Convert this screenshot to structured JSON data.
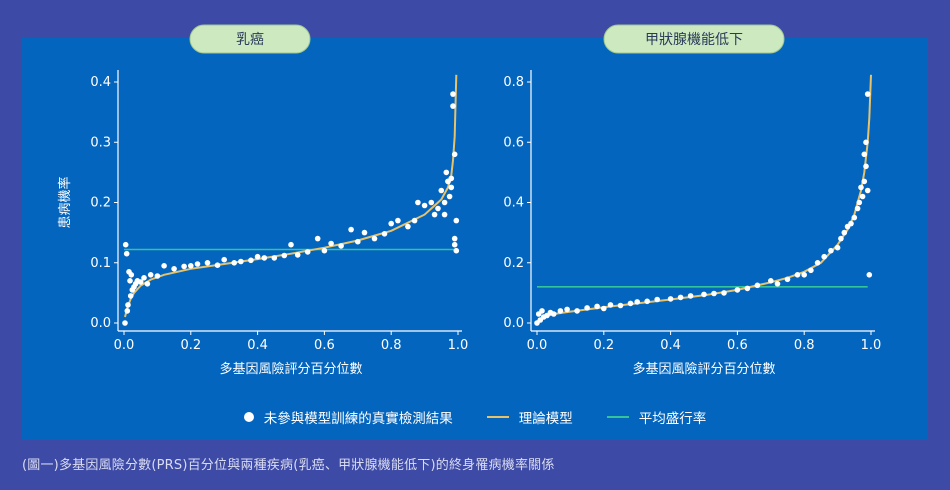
{
  "caption": "(圖一)多基因風險分數(PRS)百分位與兩種疾病(乳癌、甲狀腺機能低下)的終身罹病機率關係",
  "legend": {
    "points": "未參與模型訓練的真實檢測結果",
    "model": "理論模型",
    "mean": "平均盛行率"
  },
  "colors": {
    "background": "#3d4aa6",
    "panel": "#0365be",
    "model": "#e6c26b",
    "mean": "#35c39a",
    "points": "#ffffff"
  },
  "chart_data": [
    {
      "type": "scatter",
      "title": "乳癌",
      "xlabel": "多基因風險評分百分位數",
      "ylabel": "患病機率",
      "xlim": [
        0,
        1
      ],
      "ylim": [
        0,
        0.4
      ],
      "xticks": [
        "0.0",
        "0.2",
        "0.4",
        "0.6",
        "0.8",
        "1.0"
      ],
      "yticks": [
        "0.0",
        "0.1",
        "0.2",
        "0.3",
        "0.4"
      ],
      "mean_prevalence": 0.122,
      "model": {
        "name": "理論模型",
        "x": [
          0.003,
          0.01,
          0.02,
          0.03,
          0.05,
          0.08,
          0.12,
          0.2,
          0.3,
          0.4,
          0.5,
          0.6,
          0.7,
          0.8,
          0.9,
          0.95,
          0.97,
          0.98,
          0.985,
          0.99,
          0.995
        ],
        "y": [
          0.01,
          0.025,
          0.04,
          0.05,
          0.062,
          0.072,
          0.08,
          0.09,
          0.098,
          0.106,
          0.115,
          0.125,
          0.137,
          0.153,
          0.18,
          0.205,
          0.225,
          0.245,
          0.27,
          0.31,
          0.42
        ]
      },
      "points": {
        "name": "未參與模型訓練的真實檢測結果",
        "x": [
          0.003,
          0.005,
          0.008,
          0.01,
          0.012,
          0.015,
          0.018,
          0.02,
          0.022,
          0.025,
          0.03,
          0.035,
          0.04,
          0.05,
          0.06,
          0.07,
          0.08,
          0.1,
          0.12,
          0.15,
          0.18,
          0.2,
          0.22,
          0.25,
          0.28,
          0.3,
          0.33,
          0.35,
          0.38,
          0.4,
          0.42,
          0.45,
          0.48,
          0.5,
          0.52,
          0.55,
          0.58,
          0.6,
          0.62,
          0.65,
          0.68,
          0.7,
          0.72,
          0.75,
          0.78,
          0.8,
          0.82,
          0.85,
          0.87,
          0.88,
          0.9,
          0.92,
          0.93,
          0.94,
          0.95,
          0.96,
          0.965,
          0.97,
          0.975,
          0.98,
          0.98,
          0.985,
          0.985,
          0.99,
          0.99,
          0.99,
          0.995,
          0.995,
          0.97,
          0.96
        ],
        "y": [
          0.0,
          0.13,
          0.115,
          0.02,
          0.03,
          0.085,
          0.07,
          0.045,
          0.08,
          0.055,
          0.06,
          0.065,
          0.07,
          0.068,
          0.075,
          0.065,
          0.08,
          0.078,
          0.095,
          0.09,
          0.094,
          0.095,
          0.098,
          0.1,
          0.096,
          0.105,
          0.1,
          0.102,
          0.104,
          0.11,
          0.108,
          0.108,
          0.112,
          0.13,
          0.113,
          0.118,
          0.14,
          0.12,
          0.132,
          0.128,
          0.155,
          0.135,
          0.15,
          0.14,
          0.148,
          0.165,
          0.17,
          0.16,
          0.17,
          0.2,
          0.195,
          0.2,
          0.18,
          0.19,
          0.22,
          0.2,
          0.25,
          0.235,
          0.21,
          0.24,
          0.225,
          0.36,
          0.38,
          0.28,
          0.13,
          0.14,
          0.12,
          0.17,
          0.235,
          0.18
        ]
      }
    },
    {
      "type": "scatter",
      "title": "甲狀腺機能低下",
      "xlabel": "多基因風險評分百分位數",
      "ylabel": "",
      "xlim": [
        0,
        1
      ],
      "ylim": [
        0,
        0.8
      ],
      "xticks": [
        "0.0",
        "0.2",
        "0.4",
        "0.6",
        "0.8",
        "1.0"
      ],
      "yticks": [
        "0.0",
        "0.2",
        "0.4",
        "0.6",
        "0.8"
      ],
      "mean_prevalence": 0.12,
      "model": {
        "name": "理論模型",
        "x": [
          0.0,
          0.02,
          0.05,
          0.1,
          0.2,
          0.3,
          0.4,
          0.5,
          0.6,
          0.7,
          0.75,
          0.8,
          0.85,
          0.9,
          0.93,
          0.95,
          0.97,
          0.98,
          0.99,
          0.995,
          1.0
        ],
        "y": [
          0.005,
          0.02,
          0.03,
          0.038,
          0.052,
          0.065,
          0.078,
          0.092,
          0.11,
          0.135,
          0.15,
          0.17,
          0.2,
          0.26,
          0.31,
          0.36,
          0.44,
          0.5,
          0.6,
          0.68,
          0.84
        ]
      },
      "points": {
        "name": "未參與模型訓練的真實檢測結果",
        "x": [
          0.0,
          0.005,
          0.01,
          0.015,
          0.02,
          0.03,
          0.04,
          0.05,
          0.07,
          0.09,
          0.12,
          0.15,
          0.18,
          0.2,
          0.22,
          0.25,
          0.28,
          0.3,
          0.33,
          0.36,
          0.4,
          0.43,
          0.46,
          0.5,
          0.53,
          0.56,
          0.6,
          0.63,
          0.66,
          0.7,
          0.72,
          0.75,
          0.78,
          0.8,
          0.82,
          0.84,
          0.86,
          0.88,
          0.9,
          0.91,
          0.92,
          0.93,
          0.94,
          0.95,
          0.96,
          0.965,
          0.97,
          0.975,
          0.98,
          0.98,
          0.985,
          0.985,
          0.99,
          0.99,
          0.995
        ],
        "y": [
          0.0,
          0.03,
          0.01,
          0.04,
          0.02,
          0.025,
          0.035,
          0.03,
          0.04,
          0.045,
          0.04,
          0.05,
          0.055,
          0.048,
          0.06,
          0.058,
          0.065,
          0.07,
          0.072,
          0.078,
          0.08,
          0.085,
          0.09,
          0.095,
          0.098,
          0.1,
          0.11,
          0.115,
          0.125,
          0.14,
          0.13,
          0.145,
          0.16,
          0.16,
          0.175,
          0.2,
          0.22,
          0.24,
          0.25,
          0.28,
          0.3,
          0.32,
          0.33,
          0.35,
          0.38,
          0.4,
          0.45,
          0.42,
          0.47,
          0.56,
          0.6,
          0.52,
          0.76,
          0.44,
          0.16
        ]
      }
    }
  ]
}
